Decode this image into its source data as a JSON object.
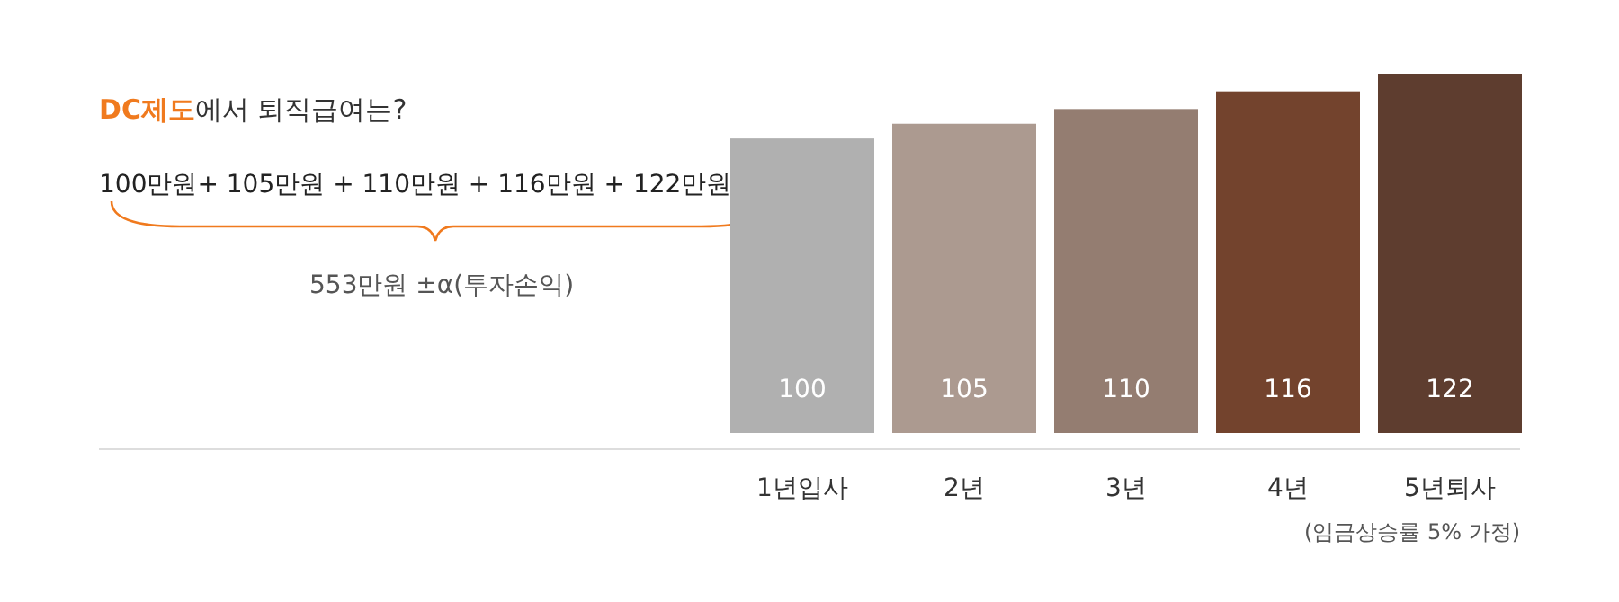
{
  "chart_data": {
    "type": "bar",
    "title": "DC제도에서 퇴직급여는?",
    "categories": [
      "1년입사",
      "2년",
      "3년",
      "4년",
      "5년퇴사"
    ],
    "values": [
      100,
      105,
      110,
      116,
      122
    ],
    "colors": [
      "#b0b0b0",
      "#ac9a90",
      "#947d71",
      "#73432d",
      "#5e3d2f"
    ],
    "data_labels": true,
    "tick_labels": "x",
    "annotations": [
      "100만원+ 105만원 + 110만원 + 116만원 + 122만원",
      "553만원 ±α(투자손익)",
      "(임금상승률 5% 가정)"
    ]
  }
}
